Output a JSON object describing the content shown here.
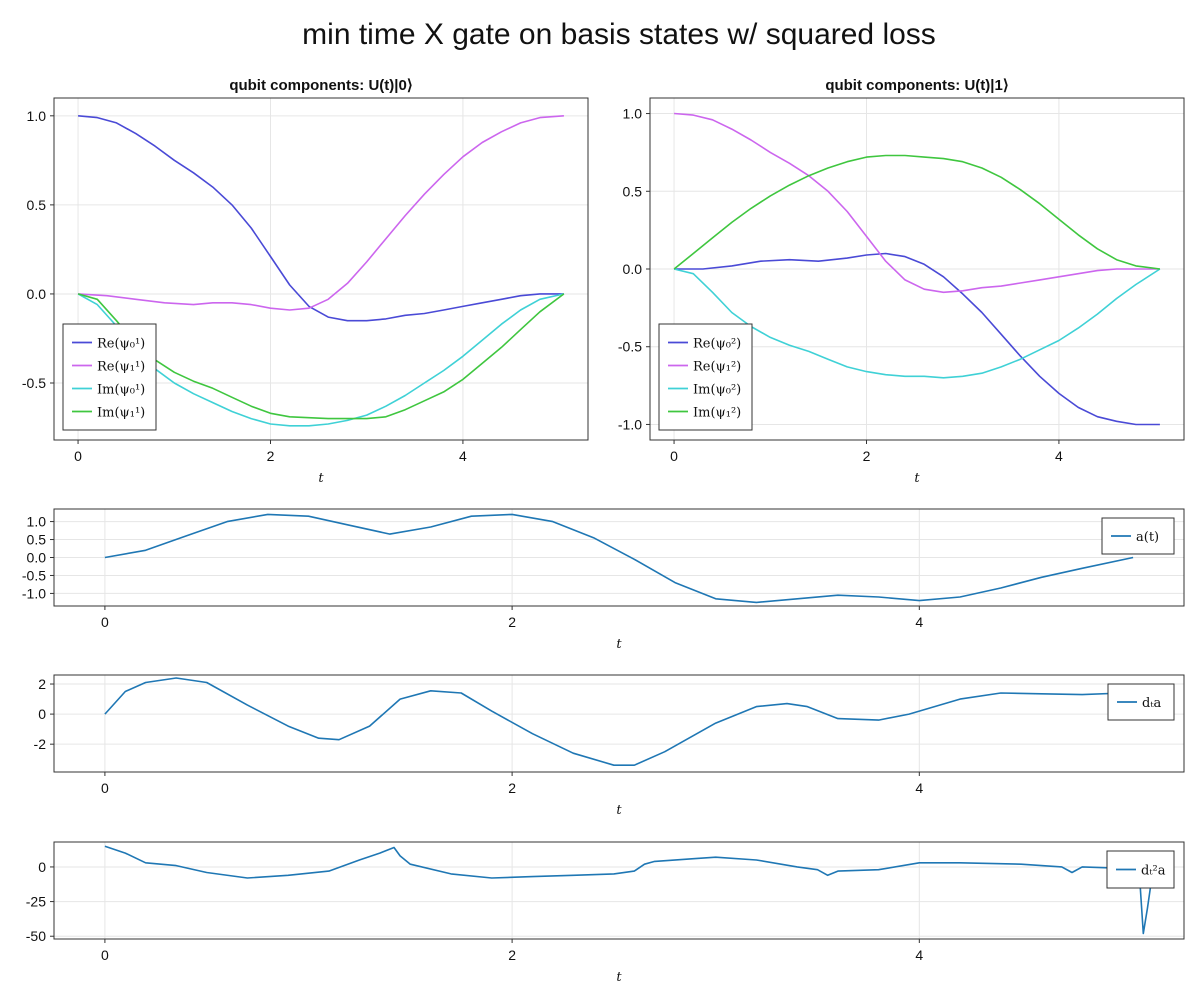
{
  "figure": {
    "title": "min time X gate on basis states w/ squared loss"
  },
  "chart_data": [
    {
      "id": "psi0",
      "type": "line",
      "title": "qubit components: U(t)|0⟩",
      "xlabel": "t",
      "ylabel": "",
      "xlim": [
        -0.25,
        5.3
      ],
      "ylim": [
        -0.82,
        1.1
      ],
      "xticks": [
        0,
        2,
        4
      ],
      "yticks": [
        1.0,
        0.5,
        0.0,
        -0.5
      ],
      "ytick_labels": [
        "1.0",
        "0.5",
        "0.0",
        "-0.5"
      ],
      "grid": true,
      "legend_position": "bottom-left",
      "series": [
        {
          "name": "Re(ψ₀¹)",
          "color": "#4a4ad6",
          "x": [
            0,
            0.2,
            0.4,
            0.6,
            0.8,
            1.0,
            1.2,
            1.4,
            1.6,
            1.8,
            2.0,
            2.2,
            2.4,
            2.6,
            2.8,
            3.0,
            3.2,
            3.4,
            3.6,
            3.8,
            4.0,
            4.2,
            4.4,
            4.6,
            4.8,
            5.05
          ],
          "values": [
            1.0,
            0.99,
            0.96,
            0.9,
            0.83,
            0.75,
            0.68,
            0.6,
            0.5,
            0.37,
            0.21,
            0.05,
            -0.07,
            -0.13,
            -0.15,
            -0.15,
            -0.14,
            -0.12,
            -0.11,
            -0.09,
            -0.07,
            -0.05,
            -0.03,
            -0.01,
            0.0,
            0.0
          ]
        },
        {
          "name": "Re(ψ₁¹)",
          "color": "#cc66ee",
          "x": [
            0,
            0.3,
            0.6,
            0.9,
            1.2,
            1.4,
            1.6,
            1.8,
            2.0,
            2.2,
            2.4,
            2.6,
            2.8,
            3.0,
            3.2,
            3.4,
            3.6,
            3.8,
            4.0,
            4.2,
            4.4,
            4.6,
            4.8,
            5.05
          ],
          "values": [
            0.0,
            -0.01,
            -0.03,
            -0.05,
            -0.06,
            -0.05,
            -0.05,
            -0.06,
            -0.08,
            -0.09,
            -0.08,
            -0.03,
            0.06,
            0.18,
            0.31,
            0.44,
            0.56,
            0.67,
            0.77,
            0.85,
            0.91,
            0.96,
            0.99,
            1.0
          ]
        },
        {
          "name": "Im(ψ₀¹)",
          "color": "#3fd1d6",
          "x": [
            0,
            0.2,
            0.4,
            0.6,
            0.8,
            1.0,
            1.2,
            1.4,
            1.6,
            1.8,
            2.0,
            2.2,
            2.4,
            2.6,
            2.8,
            3.0,
            3.2,
            3.4,
            3.6,
            3.8,
            4.0,
            4.2,
            4.4,
            4.6,
            4.8,
            5.05
          ],
          "values": [
            0.0,
            -0.06,
            -0.18,
            -0.33,
            -0.42,
            -0.5,
            -0.56,
            -0.61,
            -0.66,
            -0.7,
            -0.73,
            -0.74,
            -0.74,
            -0.73,
            -0.71,
            -0.68,
            -0.63,
            -0.57,
            -0.5,
            -0.43,
            -0.35,
            -0.26,
            -0.17,
            -0.09,
            -0.03,
            0.0
          ]
        },
        {
          "name": "Im(ψ₁¹)",
          "color": "#3fc63f",
          "x": [
            0,
            0.2,
            0.4,
            0.6,
            0.8,
            1.0,
            1.2,
            1.4,
            1.6,
            1.8,
            2.0,
            2.2,
            2.4,
            2.6,
            2.8,
            3.0,
            3.2,
            3.4,
            3.6,
            3.8,
            4.0,
            4.2,
            4.4,
            4.6,
            4.8,
            5.05
          ],
          "values": [
            0.0,
            -0.03,
            -0.15,
            -0.28,
            -0.37,
            -0.44,
            -0.49,
            -0.53,
            -0.58,
            -0.63,
            -0.67,
            -0.69,
            -0.695,
            -0.7,
            -0.7,
            -0.7,
            -0.69,
            -0.65,
            -0.6,
            -0.55,
            -0.48,
            -0.39,
            -0.3,
            -0.2,
            -0.1,
            0.0
          ]
        }
      ]
    },
    {
      "id": "psi1",
      "type": "line",
      "title": "qubit components: U(t)|1⟩",
      "xlabel": "t",
      "ylabel": "",
      "xlim": [
        -0.25,
        5.3
      ],
      "ylim": [
        -1.1,
        1.1
      ],
      "xticks": [
        0,
        2,
        4
      ],
      "yticks": [
        1.0,
        0.5,
        0.0,
        -0.5,
        -1.0
      ],
      "ytick_labels": [
        "1.0",
        "0.5",
        "0.0",
        "-0.5",
        "-1.0"
      ],
      "grid": true,
      "legend_position": "bottom-left",
      "series": [
        {
          "name": "Re(ψ₀²)",
          "color": "#4a4ad6",
          "x": [
            0,
            0.3,
            0.6,
            0.9,
            1.2,
            1.5,
            1.8,
            2.0,
            2.2,
            2.4,
            2.6,
            2.8,
            3.0,
            3.2,
            3.4,
            3.6,
            3.8,
            4.0,
            4.2,
            4.4,
            4.6,
            4.8,
            5.05
          ],
          "values": [
            0.0,
            0.0,
            0.02,
            0.05,
            0.06,
            0.05,
            0.07,
            0.09,
            0.1,
            0.08,
            0.03,
            -0.05,
            -0.16,
            -0.28,
            -0.42,
            -0.56,
            -0.69,
            -0.8,
            -0.89,
            -0.95,
            -0.98,
            -1.0,
            -1.0
          ]
        },
        {
          "name": "Re(ψ₁²)",
          "color": "#cc66ee",
          "x": [
            0,
            0.2,
            0.4,
            0.6,
            0.8,
            1.0,
            1.2,
            1.4,
            1.6,
            1.8,
            2.0,
            2.2,
            2.4,
            2.6,
            2.8,
            3.0,
            3.2,
            3.4,
            3.6,
            3.8,
            4.0,
            4.2,
            4.4,
            4.6,
            4.8,
            5.05
          ],
          "values": [
            1.0,
            0.99,
            0.96,
            0.9,
            0.83,
            0.75,
            0.68,
            0.6,
            0.5,
            0.37,
            0.21,
            0.05,
            -0.07,
            -0.13,
            -0.15,
            -0.14,
            -0.12,
            -0.11,
            -0.09,
            -0.07,
            -0.05,
            -0.03,
            -0.01,
            0.0,
            0.0,
            0.0
          ]
        },
        {
          "name": "Im(ψ₀²)",
          "color": "#3fd1d6",
          "x": [
            0,
            0.2,
            0.4,
            0.6,
            0.8,
            1.0,
            1.2,
            1.4,
            1.6,
            1.8,
            2.0,
            2.2,
            2.4,
            2.6,
            2.8,
            3.0,
            3.2,
            3.4,
            3.6,
            3.8,
            4.0,
            4.2,
            4.4,
            4.6,
            4.8,
            5.05
          ],
          "values": [
            0.0,
            -0.03,
            -0.15,
            -0.28,
            -0.37,
            -0.44,
            -0.49,
            -0.53,
            -0.58,
            -0.63,
            -0.66,
            -0.68,
            -0.69,
            -0.69,
            -0.7,
            -0.69,
            -0.67,
            -0.63,
            -0.58,
            -0.52,
            -0.46,
            -0.38,
            -0.29,
            -0.19,
            -0.1,
            0.0
          ]
        },
        {
          "name": "Im(ψ₁²)",
          "color": "#3fc63f",
          "x": [
            0,
            0.2,
            0.4,
            0.6,
            0.8,
            1.0,
            1.2,
            1.4,
            1.6,
            1.8,
            2.0,
            2.2,
            2.4,
            2.6,
            2.8,
            3.0,
            3.2,
            3.4,
            3.6,
            3.8,
            4.0,
            4.2,
            4.4,
            4.6,
            4.8,
            5.05
          ],
          "values": [
            0.0,
            0.1,
            0.2,
            0.3,
            0.39,
            0.47,
            0.54,
            0.6,
            0.65,
            0.69,
            0.72,
            0.73,
            0.73,
            0.72,
            0.71,
            0.69,
            0.65,
            0.59,
            0.51,
            0.42,
            0.32,
            0.22,
            0.13,
            0.06,
            0.02,
            0.0
          ]
        }
      ]
    },
    {
      "id": "a",
      "type": "line",
      "title": "",
      "xlabel": "t",
      "ylabel": "",
      "xlim": [
        -0.25,
        5.3
      ],
      "ylim": [
        -1.35,
        1.35
      ],
      "xticks": [
        0,
        2,
        4
      ],
      "yticks": [
        1.0,
        0.5,
        0.0,
        -0.5,
        -1.0
      ],
      "ytick_labels": [
        "1.0",
        "0.5",
        "0.0",
        "-0.5",
        "-1.0"
      ],
      "grid": true,
      "legend_position": "top-right",
      "series": [
        {
          "name": "a(t)",
          "color": "#1f77b4",
          "x": [
            0,
            0.2,
            0.4,
            0.6,
            0.8,
            1.0,
            1.2,
            1.4,
            1.6,
            1.8,
            2.0,
            2.2,
            2.4,
            2.6,
            2.8,
            3.0,
            3.2,
            3.4,
            3.6,
            3.8,
            4.0,
            4.2,
            4.4,
            4.6,
            4.8,
            5.05
          ],
          "values": [
            0.0,
            0.2,
            0.6,
            1.0,
            1.2,
            1.15,
            0.9,
            0.65,
            0.85,
            1.15,
            1.2,
            1.0,
            0.55,
            -0.05,
            -0.7,
            -1.15,
            -1.25,
            -1.15,
            -1.05,
            -1.1,
            -1.2,
            -1.1,
            -0.85,
            -0.55,
            -0.3,
            0.0
          ]
        }
      ]
    },
    {
      "id": "da",
      "type": "line",
      "title": "",
      "xlabel": "t",
      "ylabel": "",
      "xlim": [
        -0.25,
        5.3
      ],
      "ylim": [
        -3.85,
        2.6
      ],
      "xticks": [
        0,
        2,
        4
      ],
      "yticks": [
        2,
        0,
        -2
      ],
      "ytick_labels": [
        "2",
        "0",
        "-2"
      ],
      "grid": true,
      "legend_position": "top-right",
      "series": [
        {
          "name": "dₜa",
          "color": "#1f77b4",
          "x": [
            0,
            0.1,
            0.2,
            0.35,
            0.5,
            0.7,
            0.9,
            1.05,
            1.15,
            1.3,
            1.45,
            1.6,
            1.75,
            1.9,
            2.1,
            2.3,
            2.5,
            2.6,
            2.75,
            3.0,
            3.2,
            3.35,
            3.45,
            3.6,
            3.8,
            3.95,
            4.2,
            4.4,
            4.6,
            4.8,
            5.0,
            5.05
          ],
          "values": [
            0.0,
            1.5,
            2.1,
            2.4,
            2.1,
            0.6,
            -0.8,
            -1.6,
            -1.7,
            -0.8,
            1.0,
            1.55,
            1.4,
            0.2,
            -1.3,
            -2.6,
            -3.4,
            -3.4,
            -2.5,
            -0.6,
            0.5,
            0.7,
            0.5,
            -0.3,
            -0.4,
            0.0,
            1.0,
            1.4,
            1.35,
            1.3,
            1.4,
            1.3
          ]
        }
      ]
    },
    {
      "id": "d2a",
      "type": "line",
      "title": "",
      "xlabel": "t",
      "ylabel": "",
      "xlim": [
        -0.25,
        5.3
      ],
      "ylim": [
        -52,
        18
      ],
      "xticks": [
        0,
        2,
        4
      ],
      "yticks": [
        0,
        -25,
        -50
      ],
      "ytick_labels": [
        "0",
        "-25",
        "-50"
      ],
      "grid": true,
      "legend_position": "top-right",
      "series": [
        {
          "name": "dₜ²a",
          "color": "#1f77b4",
          "x": [
            0,
            0.1,
            0.2,
            0.35,
            0.5,
            0.7,
            0.9,
            1.1,
            1.25,
            1.35,
            1.42,
            1.45,
            1.5,
            1.7,
            1.9,
            2.1,
            2.3,
            2.5,
            2.6,
            2.65,
            2.7,
            2.9,
            3.0,
            3.2,
            3.4,
            3.5,
            3.55,
            3.6,
            3.8,
            4.0,
            4.2,
            4.5,
            4.7,
            4.75,
            4.8,
            5.0,
            5.08,
            5.1,
            5.12,
            5.14
          ],
          "values": [
            15,
            10,
            3,
            1,
            -4,
            -8,
            -6,
            -3,
            5,
            10,
            14,
            8,
            2,
            -5,
            -8,
            -7,
            -6,
            -5,
            -3,
            2,
            4,
            6,
            7,
            5,
            0,
            -2,
            -6,
            -3,
            -2,
            3,
            3,
            2,
            0,
            -4,
            0,
            -1,
            -3,
            -48,
            -30,
            -10
          ]
        }
      ]
    }
  ]
}
